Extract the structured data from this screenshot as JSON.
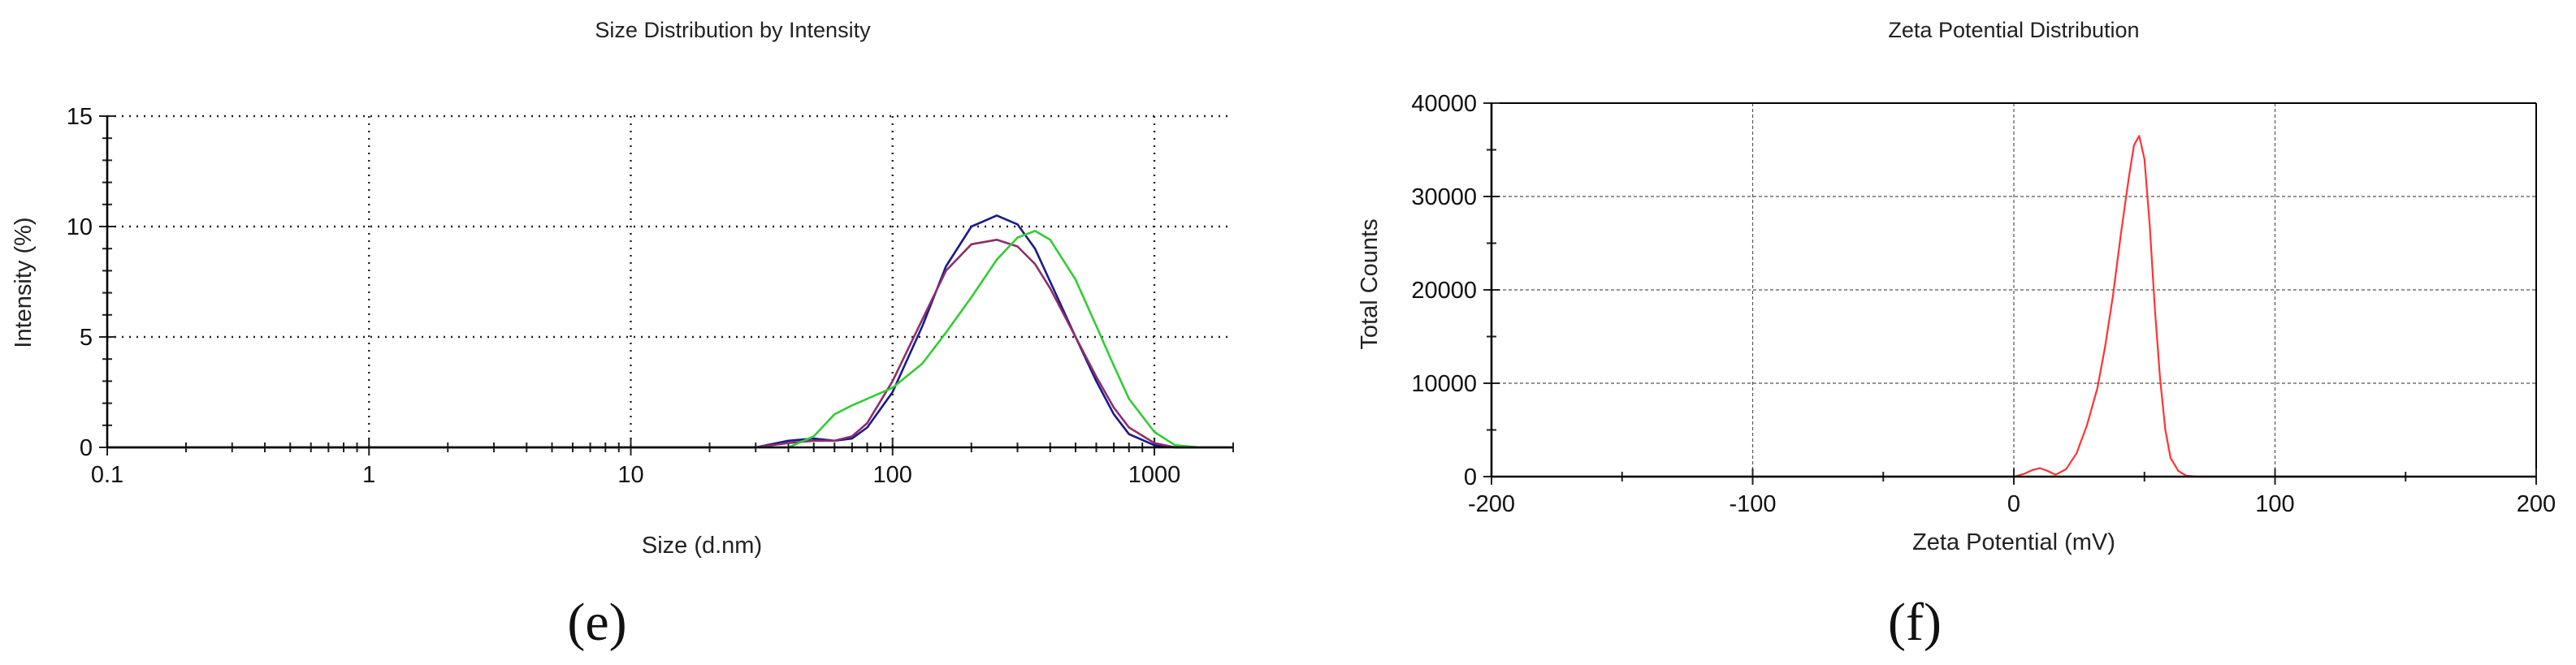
{
  "chart_data": [
    {
      "type": "line",
      "title": "Size Distribution by Intensity",
      "xlabel": "Size (d.nm)",
      "ylabel": "Intensity (%)",
      "xscale": "log",
      "xlim": [
        0.1,
        2000
      ],
      "ylim": [
        0,
        15
      ],
      "xticks": [
        "0.1",
        "1",
        "10",
        "100",
        "1000"
      ],
      "yticks": [
        "0",
        "5",
        "10",
        "15"
      ],
      "grid": true,
      "panel_label": "(e)",
      "series": [
        {
          "color": "#1a1a8c",
          "x": [
            0.1,
            30,
            40,
            50,
            60,
            70,
            80,
            100,
            130,
            160,
            200,
            250,
            300,
            350,
            400,
            500,
            600,
            700,
            800,
            1000,
            1200,
            1500,
            2000
          ],
          "y": [
            0,
            0,
            0.3,
            0.4,
            0.3,
            0.4,
            0.9,
            2.5,
            5.5,
            8.2,
            10.0,
            10.5,
            10.1,
            9.0,
            7.5,
            5.0,
            3.0,
            1.5,
            0.6,
            0.1,
            0,
            0,
            0
          ]
        },
        {
          "color": "#8c2f6b",
          "x": [
            0.1,
            30,
            40,
            50,
            60,
            70,
            80,
            100,
            130,
            160,
            200,
            250,
            300,
            350,
            400,
            500,
            600,
            700,
            800,
            1000,
            1200,
            1500,
            2000
          ],
          "y": [
            0,
            0,
            0.2,
            0.3,
            0.3,
            0.5,
            1.1,
            3.0,
            5.8,
            8.0,
            9.2,
            9.4,
            9.1,
            8.3,
            7.2,
            5.0,
            3.2,
            1.8,
            0.9,
            0.2,
            0,
            0,
            0
          ]
        },
        {
          "color": "#33cc33",
          "x": [
            0.1,
            40,
            50,
            60,
            70,
            80,
            100,
            130,
            160,
            200,
            250,
            300,
            350,
            400,
            500,
            600,
            700,
            800,
            1000,
            1200,
            1500,
            2000
          ],
          "y": [
            0,
            0,
            0.5,
            1.5,
            1.9,
            2.2,
            2.7,
            3.8,
            5.2,
            6.8,
            8.5,
            9.5,
            9.8,
            9.4,
            7.6,
            5.5,
            3.7,
            2.2,
            0.7,
            0.1,
            0,
            0
          ]
        }
      ]
    },
    {
      "type": "line",
      "title": "Zeta Potential Distribution",
      "xlabel": "Zeta Potential (mV)",
      "ylabel": "Total Counts",
      "xlim": [
        -200,
        200
      ],
      "ylim": [
        0,
        40000
      ],
      "xticks": [
        "-200",
        "-100",
        "0",
        "100",
        "200"
      ],
      "yticks": [
        "0",
        "10000",
        "20000",
        "30000",
        "40000"
      ],
      "grid": true,
      "panel_label": "(f)",
      "series": [
        {
          "color": "#8b0000",
          "x": [
            -150,
            0
          ],
          "y": [
            0,
            0
          ]
        },
        {
          "color": "#ff3333",
          "x": [
            0,
            4,
            7,
            10,
            13,
            16,
            20,
            24,
            28,
            32,
            35,
            38,
            41,
            44,
            46,
            48,
            50,
            52,
            54,
            56,
            58,
            60,
            63,
            66,
            70
          ],
          "y": [
            0,
            300,
            700,
            900,
            600,
            200,
            800,
            2500,
            5500,
            9500,
            14000,
            19500,
            26000,
            32000,
            35500,
            36500,
            34000,
            27000,
            18000,
            10500,
            5000,
            2000,
            600,
            100,
            0
          ]
        },
        {
          "color": "#8b0000",
          "x": [
            70,
            150
          ],
          "y": [
            0,
            0
          ]
        }
      ]
    }
  ]
}
